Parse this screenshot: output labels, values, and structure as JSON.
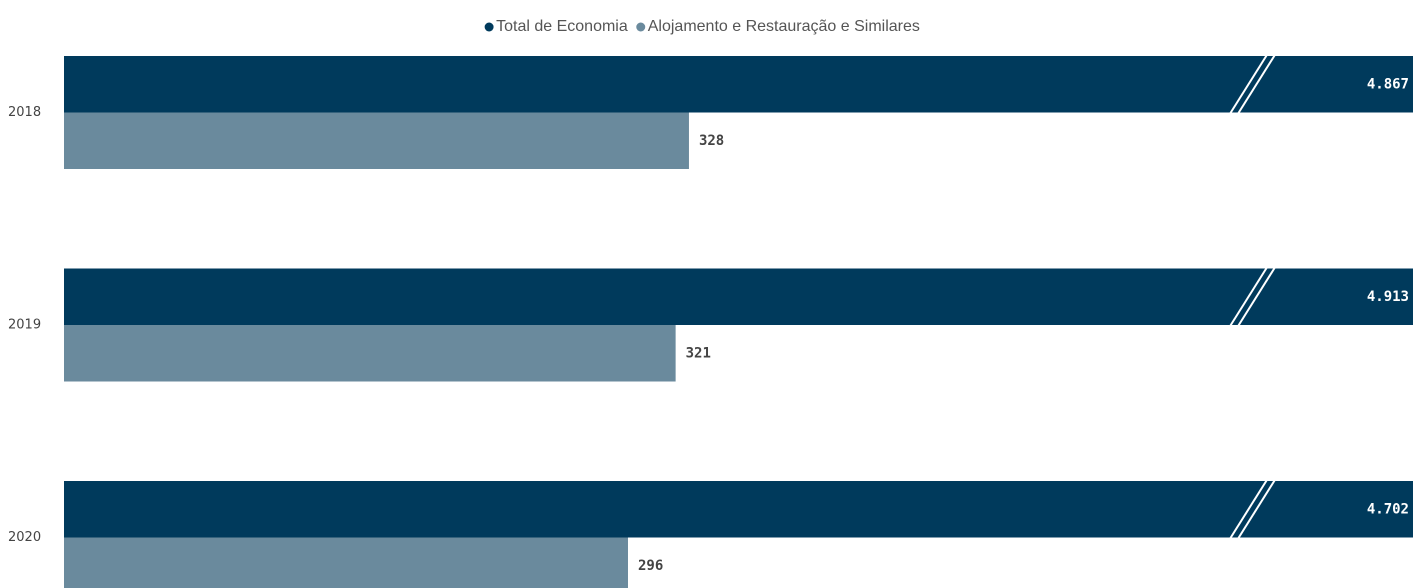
{
  "chart_data": {
    "type": "hbar",
    "categories": [
      "2018",
      "2019",
      "2020"
    ],
    "series": [
      {
        "name": "Total de Economia",
        "color": "#003a5c",
        "values": [
          4867,
          4913,
          4702
        ],
        "value_labels": [
          "4.867",
          "4.913",
          "4.702"
        ]
      },
      {
        "name": "Alojamento e Restauração e Similares",
        "color": "#6a8a9d",
        "values": [
          328,
          321,
          296
        ]
      }
    ],
    "xlim": [
      0,
      708
    ],
    "axis_break": true,
    "legend": "top"
  }
}
